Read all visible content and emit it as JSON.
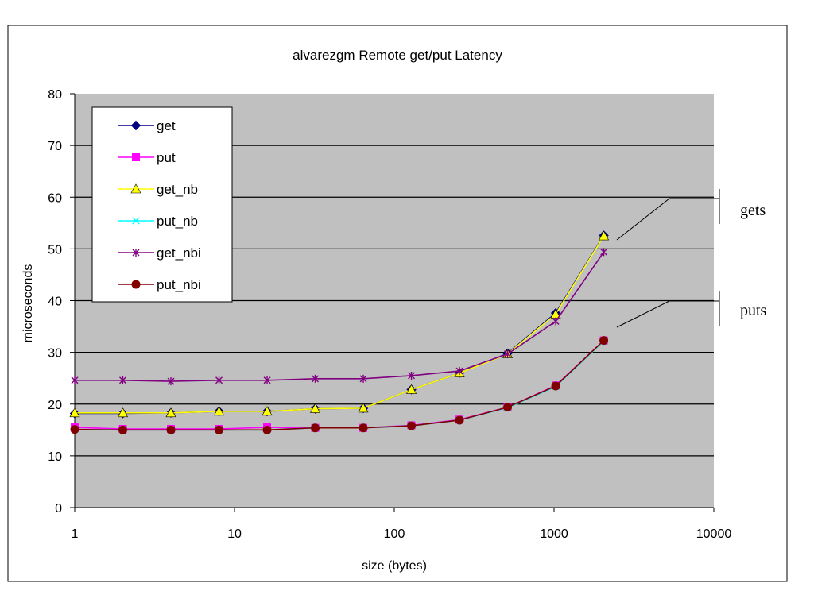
{
  "chart_data": {
    "type": "line",
    "title": "alvarezgm Remote get/put Latency",
    "xlabel": "size (bytes)",
    "ylabel": "microseconds",
    "x_scale": "log",
    "xlim": [
      1,
      10000
    ],
    "ylim": [
      0,
      80
    ],
    "x_ticks": [
      "1",
      "10",
      "100",
      "1000",
      "10000"
    ],
    "y_ticks": [
      "0",
      "10",
      "20",
      "30",
      "40",
      "50",
      "60",
      "70",
      "80"
    ],
    "grid": true,
    "legend_position": "top-left",
    "background_color": "#c0c0c0",
    "x": [
      1,
      2,
      4,
      8,
      16,
      32,
      64,
      128,
      256,
      512,
      1024,
      2048
    ],
    "series": [
      {
        "name": "get",
        "color": "#000080",
        "marker": "diamond",
        "values": [
          18.2,
          18.2,
          18.3,
          18.6,
          18.6,
          19.1,
          19.2,
          22.8,
          26.0,
          29.8,
          37.6,
          52.6
        ]
      },
      {
        "name": "put",
        "color": "#ff00ff",
        "marker": "square",
        "values": [
          15.5,
          15.2,
          15.2,
          15.2,
          15.5,
          15.4,
          15.4,
          15.9,
          17.0,
          19.4,
          23.6,
          32.3
        ]
      },
      {
        "name": "get_nb",
        "color": "#ffff00",
        "marker": "triangle",
        "values": [
          18.3,
          18.3,
          18.3,
          18.6,
          18.6,
          19.1,
          19.2,
          22.8,
          26.0,
          29.7,
          37.4,
          52.5
        ]
      },
      {
        "name": "put_nb",
        "color": "#00ffff",
        "marker": "x",
        "values": [
          15.1,
          15.0,
          15.0,
          15.0,
          15.0,
          15.4,
          15.4,
          15.8,
          16.9,
          19.3,
          23.4,
          32.2
        ]
      },
      {
        "name": "get_nbi",
        "color": "#800080",
        "marker": "star",
        "values": [
          24.6,
          24.6,
          24.4,
          24.6,
          24.6,
          24.9,
          24.9,
          25.5,
          26.4,
          29.7,
          36.0,
          49.4
        ]
      },
      {
        "name": "put_nbi",
        "color": "#800000",
        "marker": "circle",
        "values": [
          15.1,
          15.0,
          15.0,
          15.0,
          15.0,
          15.4,
          15.4,
          15.8,
          16.9,
          19.4,
          23.5,
          32.3
        ]
      }
    ],
    "annotations": [
      {
        "text": "gets"
      },
      {
        "text": "puts"
      }
    ]
  }
}
